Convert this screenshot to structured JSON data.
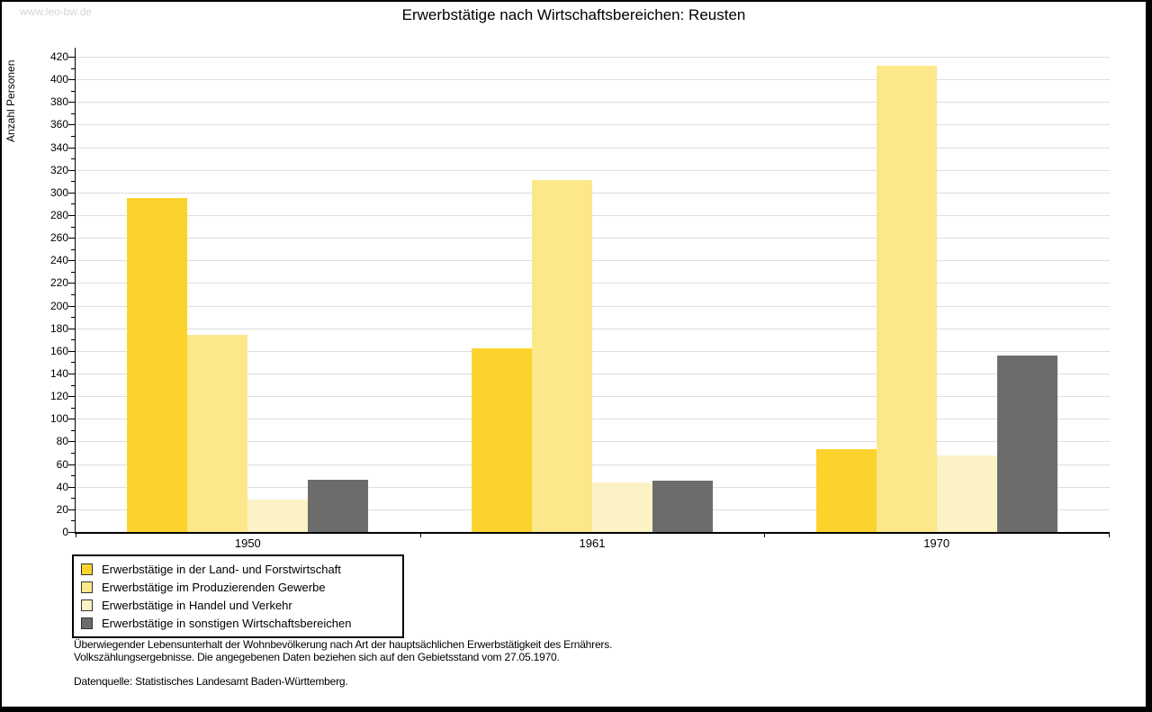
{
  "watermark": "www.leo-bw.de",
  "header": {
    "title": "Erwerbstätige nach Wirtschaftsbereichen: Reusten"
  },
  "chart_data": {
    "type": "bar",
    "title": "Erwerbstätige nach Wirtschaftsbereichen: Reusten",
    "xlabel": "",
    "ylabel": "Anzahl Personen",
    "categories": [
      "1950",
      "1961",
      "1970"
    ],
    "series": [
      {
        "name": "Erwerbstätige in der Land- und Forstwirtschaft",
        "color": "#FCD32D",
        "values": [
          295,
          162,
          73
        ]
      },
      {
        "name": "Erwerbstätige im Produzierenden Gewerbe",
        "color": "#FCE88A",
        "values": [
          174,
          311,
          412
        ]
      },
      {
        "name": "Erwerbstätige in Handel und Verkehr",
        "color": "#FBF3C6",
        "values": [
          29,
          44,
          68
        ]
      },
      {
        "name": "Erwerbstätige in sonstigen Wirtschaftsbereichen",
        "color": "#6C6C6C",
        "values": [
          46,
          45,
          156
        ]
      }
    ],
    "ylim": [
      0,
      420
    ],
    "ytick_step": 20,
    "ytick_minor_step": 10,
    "grid": true,
    "legend_position": "bottom-left",
    "bar_gap": 0
  },
  "footnotes": {
    "line1": "Überwiegender Lebensunterhalt der Wohnbevölkerung nach Art der hauptsächlichen Erwerbstätigkeit des Ernährers.",
    "line2": "Volkszählungsergebnisse. Die angegebenen Daten beziehen sich auf den Gebietsstand vom 27.05.1970.",
    "source": "Datenquelle: Statistisches Landesamt Baden-Württemberg."
  }
}
